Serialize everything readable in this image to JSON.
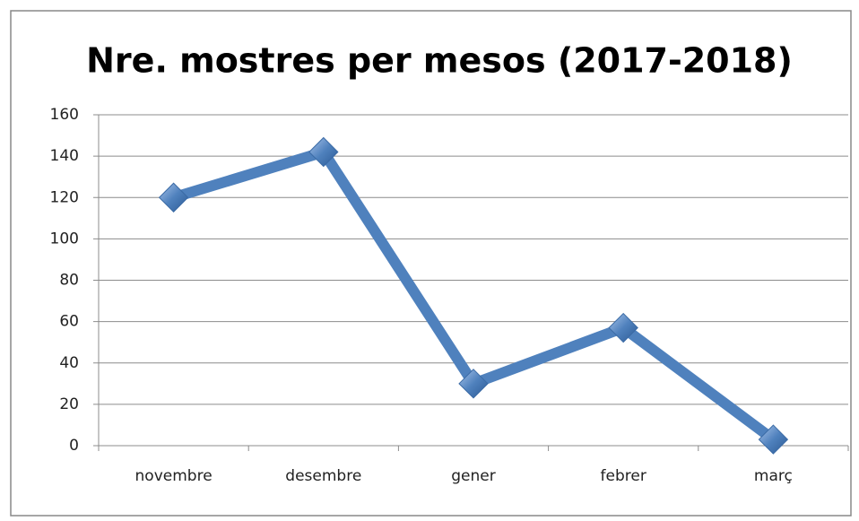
{
  "chart_data": {
    "type": "line",
    "title": "Nre. mostres per mesos (2017-2018)",
    "categories": [
      "novembre",
      "desembre",
      "gener",
      "febrer",
      "març"
    ],
    "series": [
      {
        "name": "Nre. mostres",
        "color": "#4f81bd",
        "values": [
          120,
          142,
          30,
          57,
          3
        ]
      }
    ],
    "ylim": [
      0,
      160
    ],
    "yticks": [
      0,
      20,
      40,
      60,
      80,
      100,
      120,
      140,
      160
    ],
    "grid": true
  }
}
